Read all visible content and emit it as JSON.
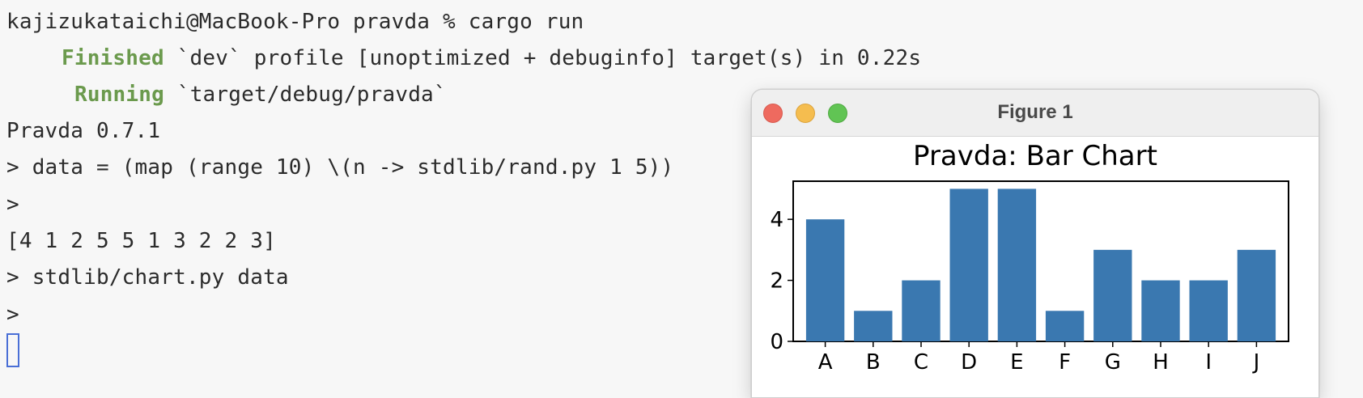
{
  "terminal": {
    "lines": {
      "l1": "kajizukataichi@MacBook-Pro pravda % cargo run",
      "l2_kw": "Finished",
      "l2_rest": " `dev` profile [unoptimized + debuginfo] target(s) in 0.22s",
      "l3_kw": "Running",
      "l3_rest": " `target/debug/pravda`",
      "l4": "Pravda 0.7.1",
      "l5": "> data = (map (range 10) \\(n -> stdlib/rand.py 1 5))",
      "l6": ">",
      "l7": "[4 1 2 5 5 1 3 2 2 3]",
      "l8": "> stdlib/chart.py data",
      "l9": ">"
    },
    "colors": {
      "keyword": "#6b9a4d",
      "cursor": "#4a6fd6"
    }
  },
  "figure_window": {
    "title": "Figure 1",
    "buttons": [
      "close",
      "minimize",
      "maximize"
    ]
  },
  "chart_data": {
    "type": "bar",
    "title": "Pravda: Bar Chart",
    "categories": [
      "A",
      "B",
      "C",
      "D",
      "E",
      "F",
      "G",
      "H",
      "I",
      "J"
    ],
    "values": [
      4,
      1,
      2,
      5,
      5,
      1,
      3,
      2,
      2,
      3
    ],
    "yticks": [
      0,
      2,
      4
    ],
    "ylim": [
      0,
      5.25
    ],
    "bar_color": "#3a78b0",
    "grid": false,
    "legend": false
  }
}
